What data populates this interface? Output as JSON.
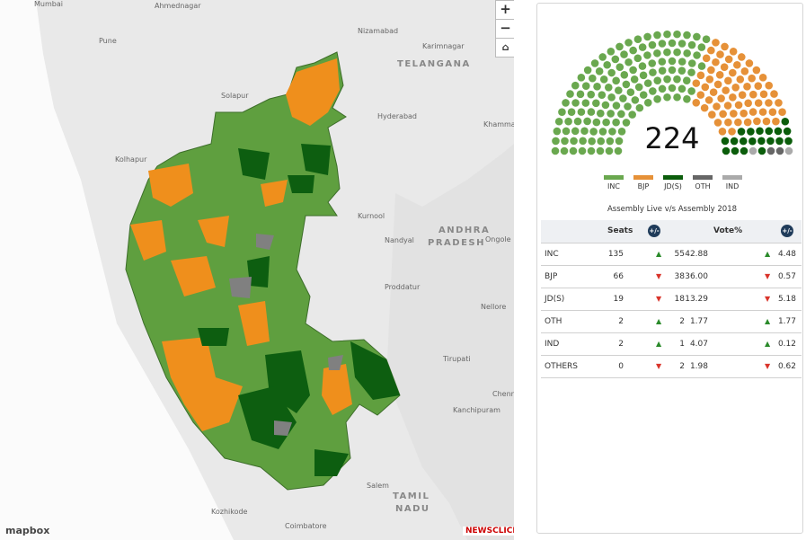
{
  "map": {
    "labels": [
      "Mumbai",
      "Ahmednagar",
      "Pune",
      "Nizamabad",
      "Karimnagar",
      "TELANGANA",
      "Solapur",
      "Hyderabad",
      "Khammam",
      "Kolhapur",
      "Kurnool",
      "Nandyal",
      "ANDHRA",
      "PRADESH",
      "Ongole",
      "Proddatur",
      "Nellore",
      "Tirupati",
      "Chennai",
      "Kanchipuram",
      "Salem",
      "TAMIL",
      "NADU",
      "Kozhikode",
      "Coimbatore"
    ],
    "attribution": "mapbox",
    "brand": "NEWSCLICK"
  },
  "controls": {
    "zoom_in": "+",
    "zoom_out": "−"
  },
  "parliament": {
    "total": 224,
    "legend": [
      {
        "name": "INC",
        "color": "#6aa84f"
      },
      {
        "name": "BJP",
        "color": "#e69138"
      },
      {
        "name": "JD(S)",
        "color": "#0b5d0b"
      },
      {
        "name": "OTH",
        "color": "#666666"
      },
      {
        "name": "IND",
        "color": "#aaaaaa"
      }
    ]
  },
  "table": {
    "title": "Assembly Live v/s Assembly 2018",
    "headers": [
      "Seats",
      "+/-",
      "Vote%",
      "+/-"
    ],
    "rows": [
      {
        "party": "INC",
        "seats": 135,
        "seats_trend": "up",
        "seats_change": "55",
        "vote": "42.88",
        "vote_trend": "up",
        "vote_change": "4.48"
      },
      {
        "party": "BJP",
        "seats": 66,
        "seats_trend": "down",
        "seats_change": "38",
        "vote": "36.00",
        "vote_trend": "down",
        "vote_change": "0.57"
      },
      {
        "party": "JD(S)",
        "seats": 19,
        "seats_trend": "down",
        "seats_change": "18",
        "vote": "13.29",
        "vote_trend": "down",
        "vote_change": "5.18"
      },
      {
        "party": "OTH",
        "seats": 2,
        "seats_trend": "up",
        "seats_change": "2",
        "vote": "1.77",
        "vote_trend": "up",
        "vote_change": "1.77"
      },
      {
        "party": "IND",
        "seats": 2,
        "seats_trend": "up",
        "seats_change": "1",
        "vote": "4.07",
        "vote_trend": "up",
        "vote_change": "0.12"
      },
      {
        "party": "OTHERS",
        "seats": 0,
        "seats_trend": "down",
        "seats_change": "2",
        "vote": "1.98",
        "vote_trend": "down",
        "vote_change": "0.62"
      }
    ]
  }
}
